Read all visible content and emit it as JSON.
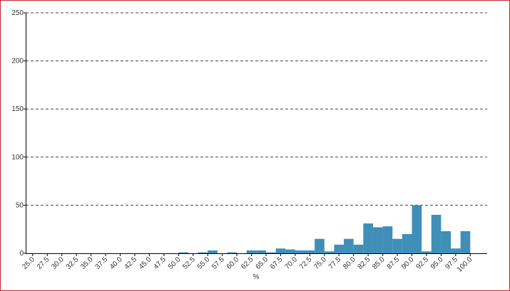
{
  "chart_data": {
    "type": "histogram",
    "x_label": "%",
    "bins": [
      25,
      26.667,
      28.333,
      30,
      31.667,
      33.333,
      35,
      36.667,
      38.333,
      40,
      41.667,
      43.333,
      45,
      46.667,
      48.333,
      50,
      51.667,
      53.333,
      55,
      56.667,
      58.333,
      60,
      61.667,
      63.333,
      65,
      66.667,
      68.333,
      70,
      71.667,
      73.333,
      75,
      76.667,
      78.333,
      80,
      81.667,
      83.333,
      85,
      86.667,
      88.333,
      90,
      91.667,
      93.333,
      95,
      96.667,
      98.333,
      100
    ],
    "values": [
      0,
      0,
      0,
      0,
      0,
      0,
      0,
      0,
      0,
      0,
      0,
      0,
      0,
      0,
      0,
      1,
      0,
      1,
      3,
      0,
      1,
      0,
      3,
      3,
      1,
      5,
      4,
      3,
      3,
      15,
      2,
      9,
      15,
      9,
      31,
      27,
      28,
      15,
      20,
      50,
      2,
      40,
      23,
      5,
      23
    ],
    "color": "#3f8fb8",
    "xlim": [
      23.8,
      102.9
    ],
    "ylim": [
      0,
      250
    ],
    "xticks": [
      {
        "value": 25,
        "label": "25.0"
      },
      {
        "value": 27.5,
        "label": "27.5"
      },
      {
        "value": 30,
        "label": "30.0"
      },
      {
        "value": 32.5,
        "label": "32.5"
      },
      {
        "value": 35,
        "label": "35.0"
      },
      {
        "value": 37.5,
        "label": "37.5"
      },
      {
        "value": 40,
        "label": "40.0"
      },
      {
        "value": 42.5,
        "label": "42.5"
      },
      {
        "value": 45,
        "label": "45.0"
      },
      {
        "value": 47.5,
        "label": "47.5"
      },
      {
        "value": 50,
        "label": "50.0"
      },
      {
        "value": 52.5,
        "label": "52.5"
      },
      {
        "value": 55,
        "label": "55.0"
      },
      {
        "value": 57.5,
        "label": "57.5"
      },
      {
        "value": 60,
        "label": "60.0"
      },
      {
        "value": 62.5,
        "label": "62.5"
      },
      {
        "value": 65,
        "label": "65.0"
      },
      {
        "value": 67.5,
        "label": "67.5"
      },
      {
        "value": 70,
        "label": "70.0"
      },
      {
        "value": 72.5,
        "label": "72.5"
      },
      {
        "value": 75,
        "label": "75.0"
      },
      {
        "value": 77.5,
        "label": "77.5"
      },
      {
        "value": 80,
        "label": "80.0"
      },
      {
        "value": 82.5,
        "label": "82.5"
      },
      {
        "value": 85,
        "label": "85.0"
      },
      {
        "value": 87.5,
        "label": "87.5"
      },
      {
        "value": 90,
        "label": "90.0"
      },
      {
        "value": 92.5,
        "label": "92.5"
      },
      {
        "value": 95,
        "label": "95.0"
      },
      {
        "value": 97.5,
        "label": "97.5"
      },
      {
        "value": 100,
        "label": "100.0"
      }
    ],
    "yticks": [
      0,
      50,
      100,
      150,
      200,
      250
    ],
    "grid": true
  }
}
